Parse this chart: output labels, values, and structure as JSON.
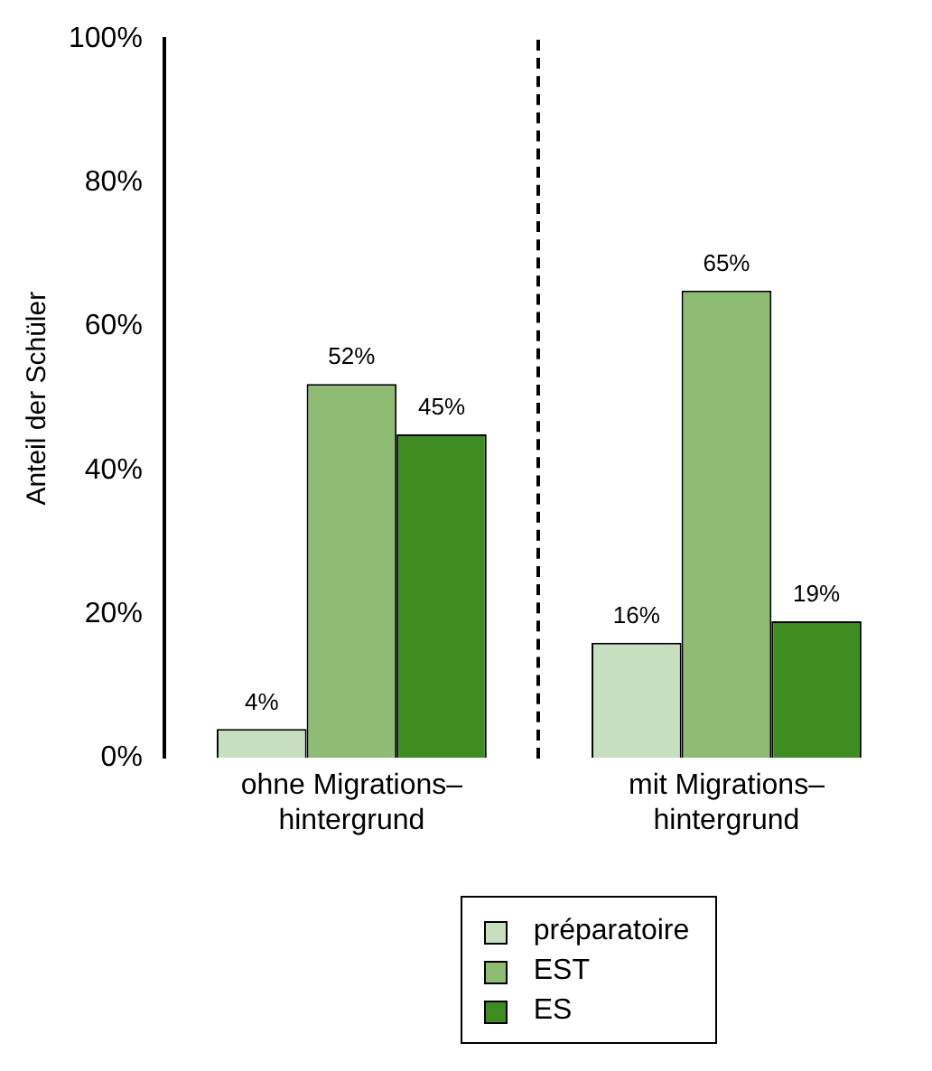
{
  "chart_data": {
    "type": "bar",
    "ylabel": "Anteil der Schüler",
    "categories": [
      "ohne Migrations–\nhintergrund",
      "mit Migrations–\nhintergrund"
    ],
    "series": [
      {
        "name": "préparatoire",
        "color": "#c7dfbf",
        "values": [
          4,
          16
        ],
        "value_labels": [
          "4%",
          "16%"
        ]
      },
      {
        "name": "EST",
        "color": "#8fbc74",
        "values": [
          52,
          65
        ],
        "value_labels": [
          "52%",
          "65%"
        ]
      },
      {
        "name": "ES",
        "color": "#3f8c22",
        "values": [
          45,
          19
        ],
        "value_labels": [
          "45%",
          "19%"
        ]
      }
    ],
    "ylim": [
      0,
      100
    ],
    "yticks": [
      {
        "value": 0,
        "label": "0%"
      },
      {
        "value": 20,
        "label": "20%"
      },
      {
        "value": 40,
        "label": "40%"
      },
      {
        "value": 60,
        "label": "60%"
      },
      {
        "value": 80,
        "label": "80%"
      },
      {
        "value": 100,
        "label": "100%"
      }
    ],
    "grid": false,
    "legend": "bottom"
  }
}
